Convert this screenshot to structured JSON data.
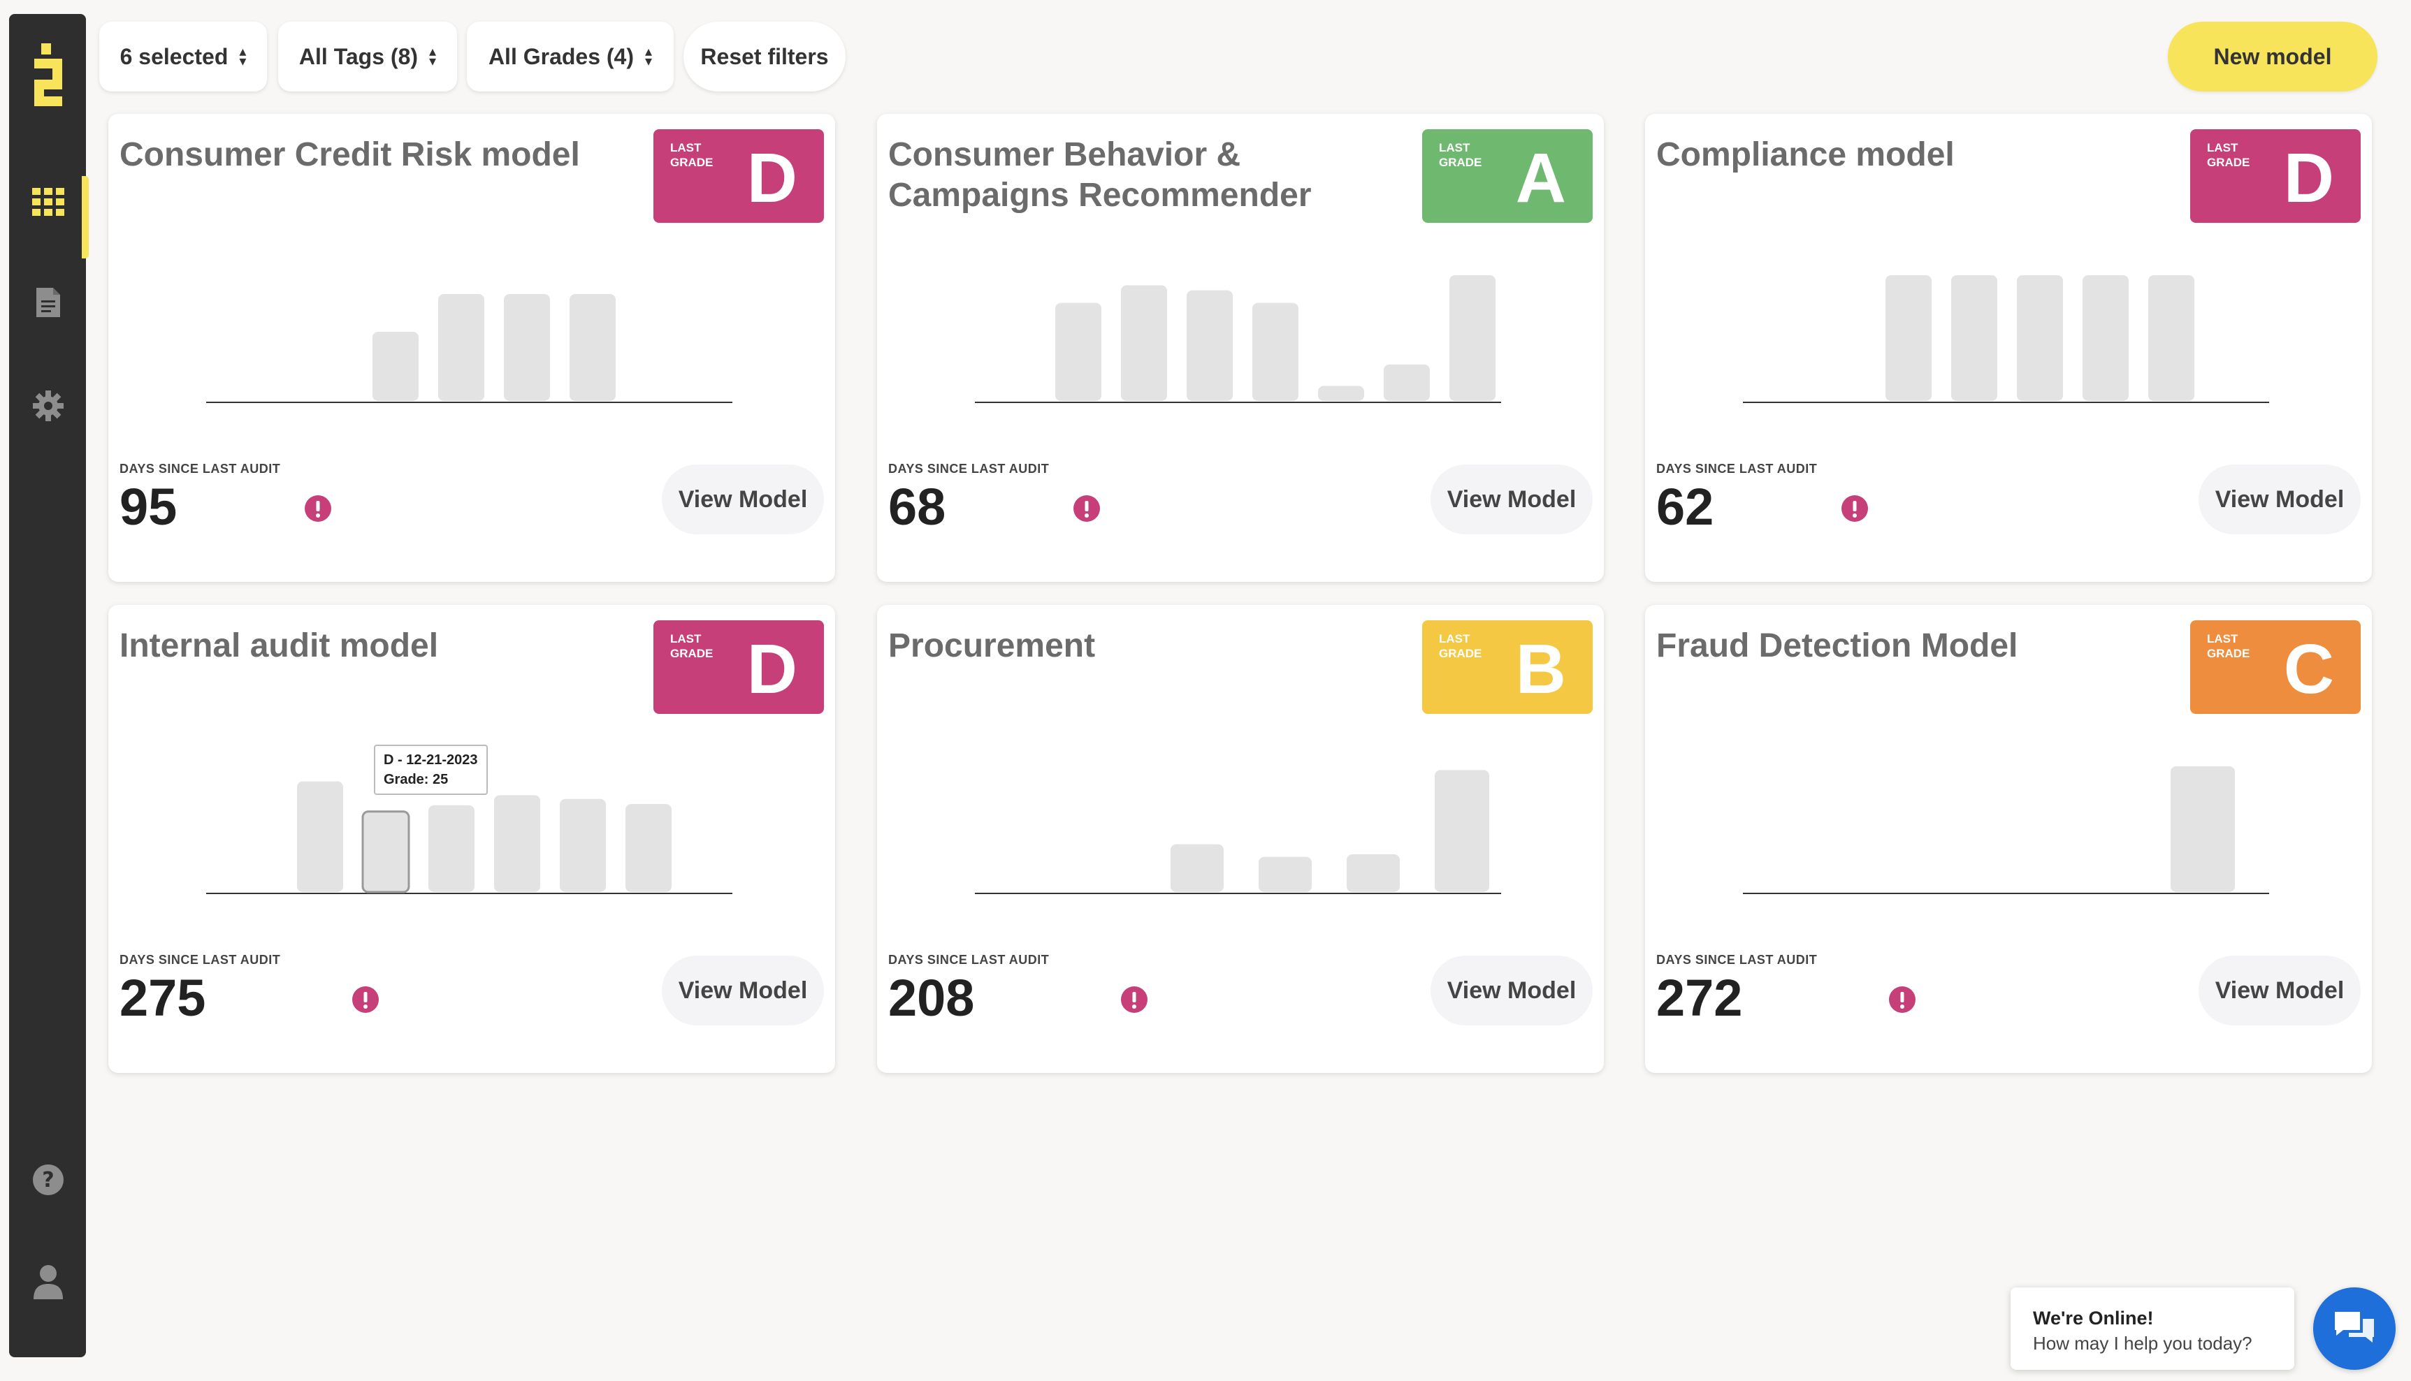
{
  "filters": {
    "selected": "6 selected",
    "tags": "All Tags (8)",
    "grades": "All Grades (4)",
    "reset": "Reset filters"
  },
  "new_model_label": "New model",
  "sidebar": {
    "icons": [
      "logo-icon",
      "grid-icon",
      "document-icon",
      "gear-icon",
      "help-icon",
      "user-icon"
    ]
  },
  "grade_label": {
    "line1": "LAST",
    "line2": "GRADE"
  },
  "audit_label": "DAYS SINCE LAST AUDIT",
  "view_model_label": "View Model",
  "colors": {
    "D": "#c63f79",
    "A": "#6fb870",
    "B": "#f4c842",
    "C": "#ef8d3e",
    "accent": "#f7e45a",
    "bar": "#e3e3e3",
    "alert": "#c63f79"
  },
  "chart_data": [
    {
      "type": "bar",
      "title": "Consumer Credit Risk model",
      "values": [
        0.55,
        0.85,
        0.85,
        0.85
      ]
    },
    {
      "type": "bar",
      "title": "Consumer Behavior & Campaigns Recommender",
      "values": [
        0.78,
        0.92,
        0.88,
        0.78,
        0.12,
        0.29,
        1.0
      ]
    },
    {
      "type": "bar",
      "title": "Compliance model",
      "values": [
        1.0,
        1.0,
        1.0,
        1.0,
        1.0
      ]
    },
    {
      "type": "bar",
      "title": "Internal audit model",
      "values": [
        0.88,
        0.64,
        0.69,
        0.77,
        0.74,
        0.7
      ]
    },
    {
      "type": "bar",
      "title": "Procurement",
      "values": [
        0.38,
        0.28,
        0.3,
        0.97
      ]
    },
    {
      "type": "bar",
      "title": "Fraud Detection Model",
      "values": [
        1.0
      ]
    }
  ],
  "cards": [
    {
      "title": "Consumer Credit Risk model",
      "grade": "D",
      "days": "95"
    },
    {
      "title": "Consumer Behavior & Campaigns Recommender",
      "grade": "A",
      "days": "68"
    },
    {
      "title": "Compliance model",
      "grade": "D",
      "days": "62"
    },
    {
      "title": "Internal audit model",
      "grade": "D",
      "days": "275"
    },
    {
      "title": "Procurement",
      "grade": "B",
      "days": "208"
    },
    {
      "title": "Fraud Detection Model",
      "grade": "C",
      "days": "272"
    }
  ],
  "tooltip": {
    "line1": "D - 12-21-2023",
    "line2": "Grade: 25"
  },
  "chat": {
    "title": "We're Online!",
    "subtitle": "How may I help you today?"
  }
}
